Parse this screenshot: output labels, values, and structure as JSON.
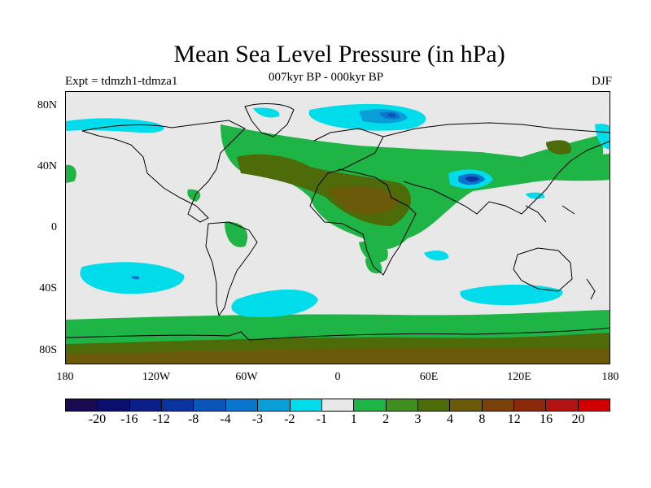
{
  "title": "Mean Sea Level Pressure (in hPa)",
  "experiment": "Expt = tdmzh1-tdmza1",
  "period": "007kyr BP - 000kyr BP",
  "season": "DJF",
  "map": {
    "lat_labels": [
      "80N",
      "40N",
      "0",
      "40S",
      "80S"
    ],
    "lon_labels": [
      "180",
      "120W",
      "60W",
      "0",
      "60E",
      "120E",
      "180"
    ]
  },
  "legend": {
    "colors": [
      "#1a0a52",
      "#0a0f6e",
      "#0a1f8a",
      "#0a35a0",
      "#0a55b8",
      "#0a75cc",
      "#0a9ed8",
      "#00dcea",
      "#e8e8e8",
      "#1eb446",
      "#3e8f1f",
      "#4e6b0a",
      "#6b5a0a",
      "#7a420a",
      "#8a2a0a",
      "#b21212",
      "#d00000"
    ],
    "labels": [
      "-20",
      "-16",
      "-12",
      "-8",
      "-4",
      "-3",
      "-2",
      "-1",
      "1",
      "2",
      "3",
      "4",
      "8",
      "12",
      "16",
      "20"
    ]
  }
}
